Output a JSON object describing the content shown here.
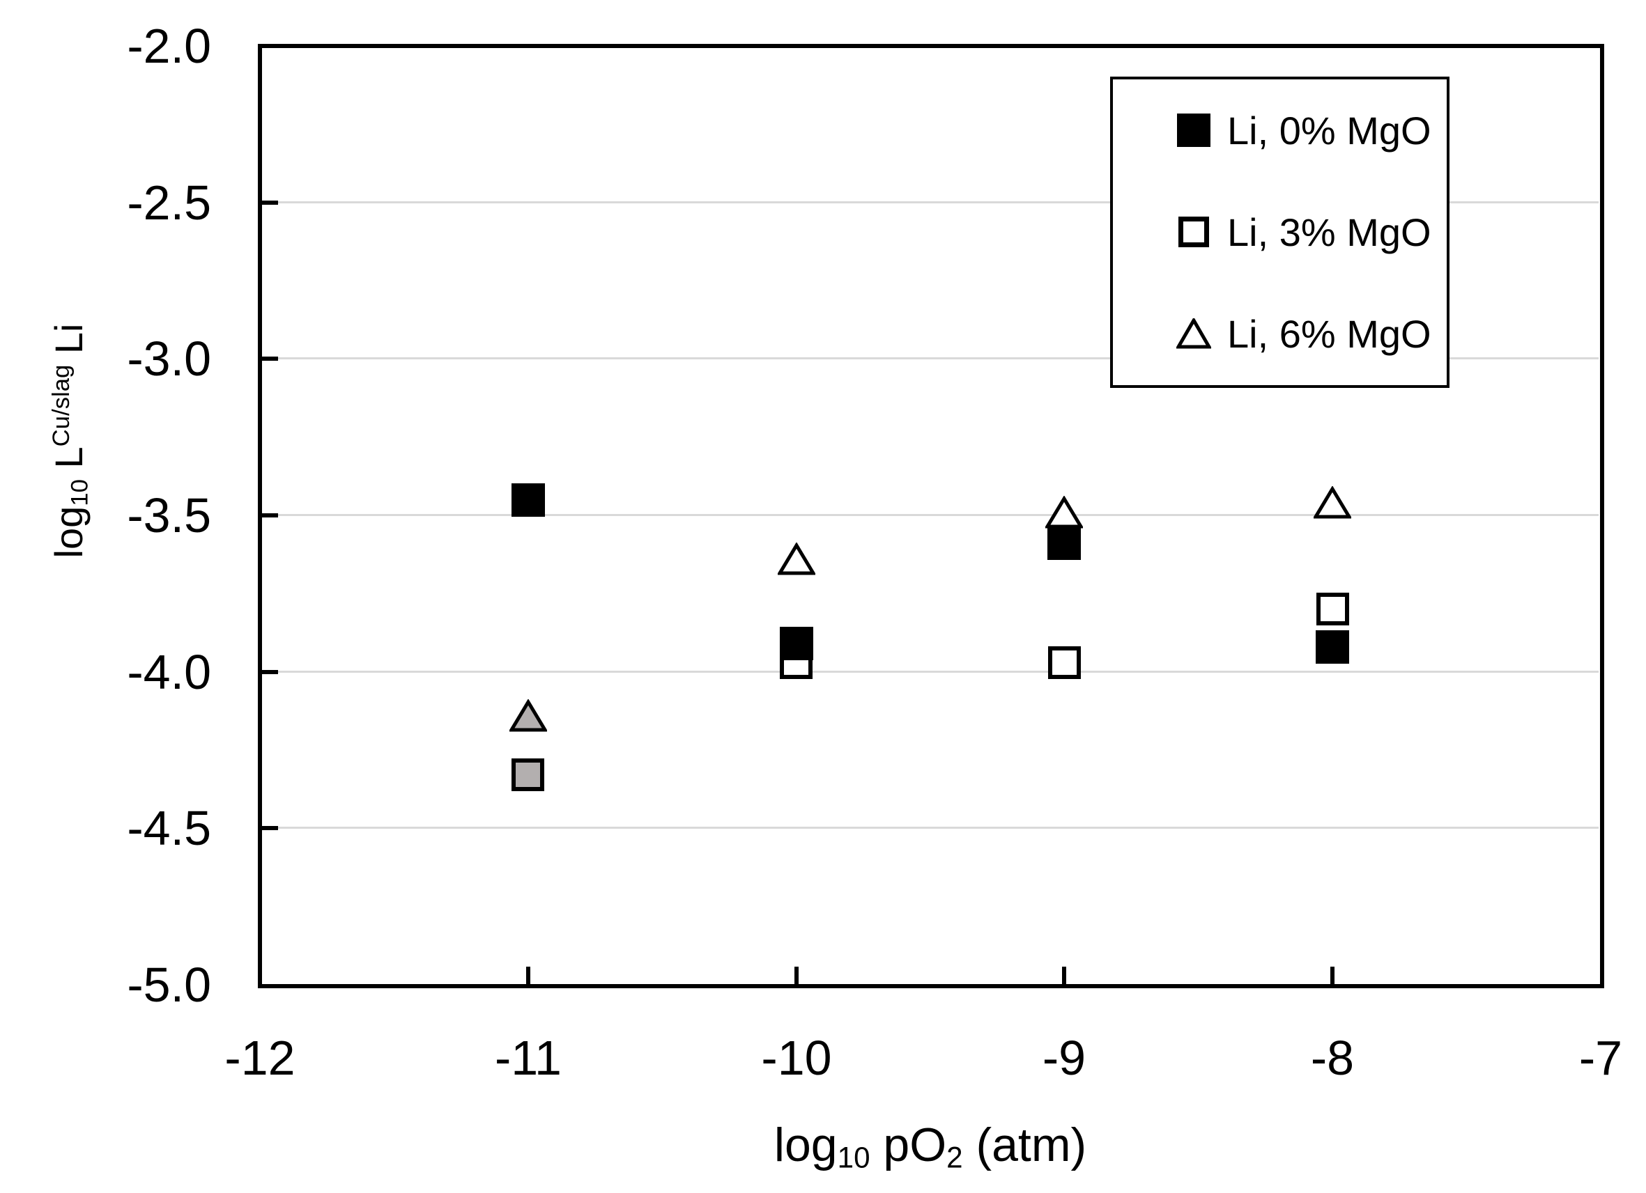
{
  "figure": {
    "type": "scatter-chart-image",
    "background": "#ffffff"
  },
  "colors": {
    "axis": "#000000",
    "gridline": "#d9d9d9",
    "marker_black": "#000000",
    "marker_white": "#ffffff",
    "marker_gray": "#b3afaf",
    "text": "#000000",
    "legend_background": "#ffffff"
  },
  "axes": {
    "x": {
      "title_parts": {
        "p1": "log",
        "s1": "10",
        "p2": " pO",
        "s2": "2",
        "p3": " (atm)"
      },
      "ticks": [
        {
          "label": "-12",
          "value": -12
        },
        {
          "label": "-11",
          "value": -11
        },
        {
          "label": "-10",
          "value": -10
        },
        {
          "label": "-9",
          "value": -9
        },
        {
          "label": "-8",
          "value": -8
        },
        {
          "label": "-7",
          "value": -7
        }
      ],
      "range": [
        -12,
        -7
      ]
    },
    "y": {
      "title_parts": {
        "p1": "log",
        "s1": "10",
        "p2": " L",
        "sup": "Cu/slag",
        "p3": " Li"
      },
      "ticks": [
        {
          "label": "-2.0",
          "value": -2.0
        },
        {
          "label": "-2.5",
          "value": -2.5
        },
        {
          "label": "-3.0",
          "value": -3.0
        },
        {
          "label": "-3.5",
          "value": -3.5
        },
        {
          "label": "-4.0",
          "value": -4.0
        },
        {
          "label": "-4.5",
          "value": -4.5
        },
        {
          "label": "-5.0",
          "value": -5.0
        }
      ],
      "range": [
        -5.0,
        -2.0
      ]
    }
  },
  "legend": {
    "items": [
      {
        "label": "Li, 0% MgO",
        "marker": "square",
        "fill": "#000000"
      },
      {
        "label": "Li, 3% MgO",
        "marker": "square",
        "fill": "#ffffff"
      },
      {
        "label": "Li, 6% MgO",
        "marker": "triangle",
        "fill": "#ffffff"
      }
    ]
  },
  "chart_data": {
    "type": "scatter",
    "title": "",
    "xlabel": "log10 pO2 (atm)",
    "ylabel": "log10 L^(Cu/slag) Li",
    "xlim": [
      -12,
      -7
    ],
    "ylim": [
      -5.0,
      -2.0
    ],
    "grid": "horizontal-only",
    "gridline_values": [
      -2.5,
      -3.0,
      -3.5,
      -4.0,
      -4.5
    ],
    "legend_position": "top-right-inside",
    "series": [
      {
        "name": "Li, 0% MgO",
        "marker": "square",
        "fill": "#000000",
        "outline": "#000000",
        "data": [
          [
            -11,
            -3.45
          ],
          [
            -10,
            -3.91
          ],
          [
            -9,
            -3.59
          ],
          [
            -8,
            -3.92
          ]
        ]
      },
      {
        "name": "Li, 3% MgO",
        "marker": "square",
        "fill": "#ffffff",
        "outline": "#000000",
        "data": [
          [
            -10,
            -3.97
          ],
          [
            -9,
            -3.97
          ],
          [
            -8,
            -3.8
          ]
        ]
      },
      {
        "name": "Li, 6% MgO",
        "marker": "triangle",
        "fill": "#ffffff",
        "outline": "#000000",
        "data": [
          [
            -10,
            -3.64
          ],
          [
            -9,
            -3.49
          ],
          [
            -8,
            -3.46
          ]
        ]
      }
    ],
    "gray_points": [
      {
        "marker": "triangle",
        "fill": "#b3afaf",
        "x": -11,
        "y": -4.14
      },
      {
        "marker": "square",
        "fill": "#b3afaf",
        "x": -11,
        "y": -4.33
      }
    ]
  }
}
